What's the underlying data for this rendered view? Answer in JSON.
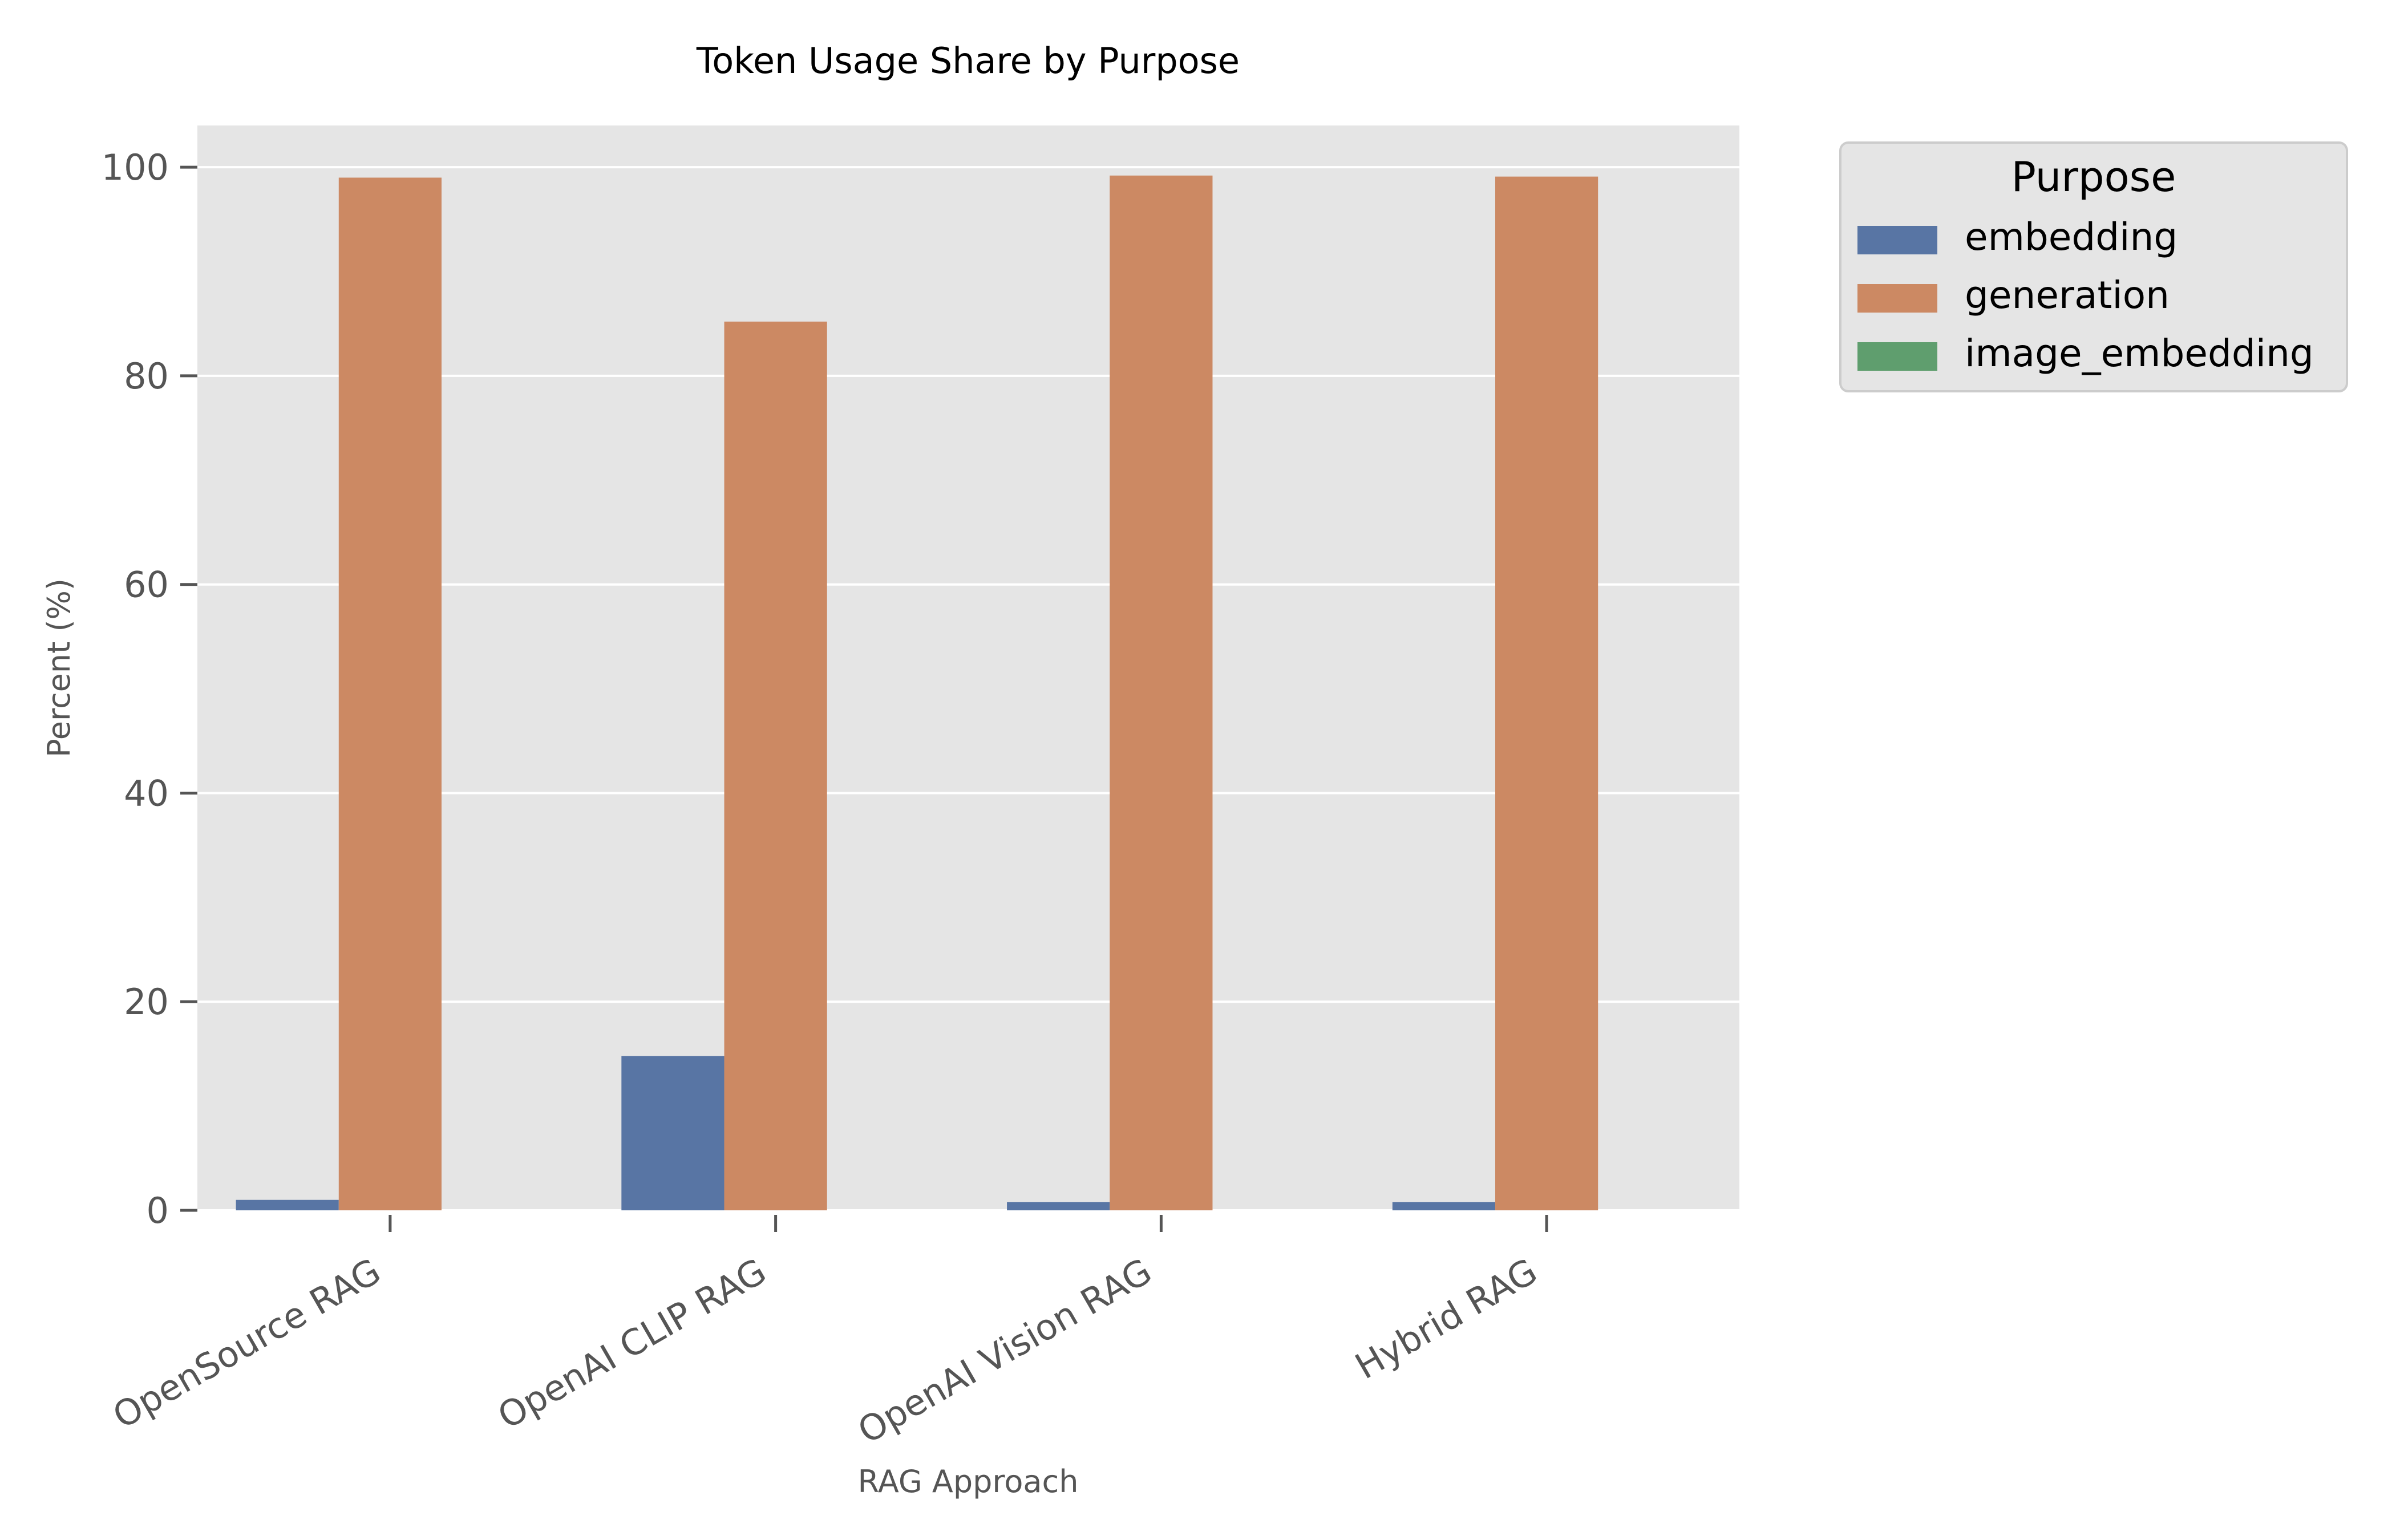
{
  "chart_data": {
    "type": "bar",
    "title": "Token Usage Share by Purpose",
    "xlabel": "RAG Approach",
    "ylabel": "Percent (%)",
    "categories": [
      "OpenSource RAG",
      "OpenAI CLIP RAG",
      "OpenAI Vision RAG",
      "Hybrid RAG"
    ],
    "series": [
      {
        "name": "embedding",
        "color": "#5875a4",
        "values": [
          1.0,
          14.8,
          0.8,
          0.8
        ]
      },
      {
        "name": "generation",
        "color": "#cc8963",
        "values": [
          99.0,
          85.2,
          99.2,
          99.1
        ]
      },
      {
        "name": "image_embedding",
        "color": "#5f9e6e",
        "values": [
          0,
          0,
          0,
          0
        ]
      }
    ],
    "ylim": [
      0,
      104
    ],
    "yticks": [
      0,
      20,
      40,
      60,
      80,
      100
    ],
    "grid": true,
    "legend": {
      "title": "Purpose",
      "placement": "outside-top-right"
    },
    "background_color": "#e5e5e5"
  }
}
